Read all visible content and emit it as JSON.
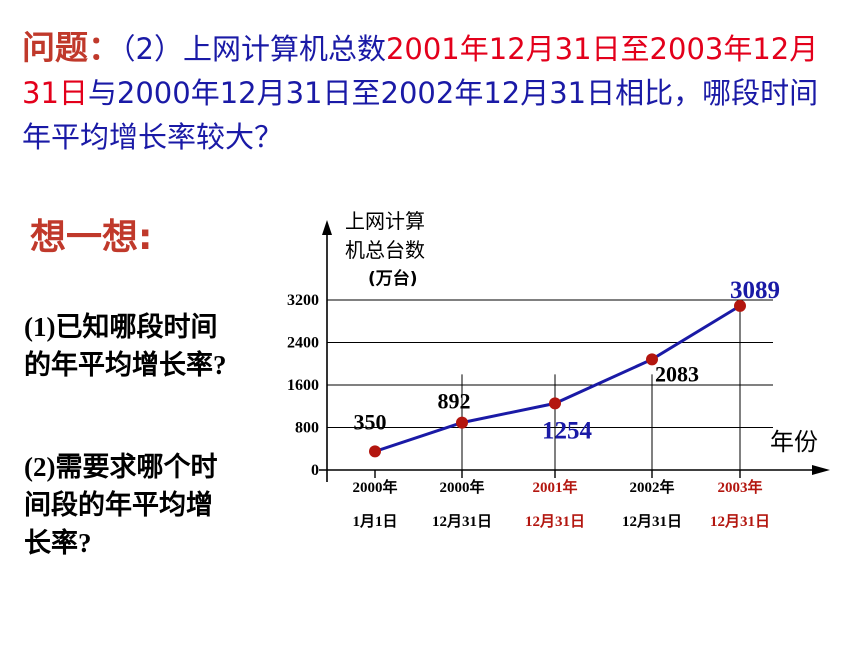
{
  "question": {
    "lead": "问题：",
    "part1": "（2）上网计算机总数",
    "part2_red": "2001年12月31日至2003年12月31日",
    "part3": "与2000年12月31日至2002年12月31日相比，哪段时间年平均增长率较大？"
  },
  "think": "想一想:",
  "prompts": [
    "(1)已知哪段时间的年平均增长率?",
    "(2)需要求哪个时间段的年平均增长率?"
  ],
  "colors": {
    "red": "#e3001b",
    "blue": "#1a1aa6",
    "point": "#b3160f",
    "line": "#1a1aa6",
    "darkred": "#b3160f"
  },
  "chart_data": {
    "type": "line",
    "ylabel_lines": [
      "上网计算",
      "机总台数",
      "(万台)"
    ],
    "xlabel": "年份",
    "yticks": [
      "0",
      "800",
      "1600",
      "2400",
      "3200"
    ],
    "ylim": [
      0,
      3200
    ],
    "categories": [
      [
        "2000年",
        "1月1日"
      ],
      [
        "2000年",
        "12月31日"
      ],
      [
        "2001年",
        "12月31日"
      ],
      [
        "2002年",
        "12月31日"
      ],
      [
        "2003年",
        "12月31日"
      ]
    ],
    "highlight_categories": [
      2,
      4
    ],
    "points": [
      350,
      892,
      1254,
      2083,
      3089
    ],
    "data_labels": [
      "350",
      "892",
      "1254",
      "2083",
      "3089"
    ],
    "highlight_labels": [
      2,
      4
    ]
  }
}
